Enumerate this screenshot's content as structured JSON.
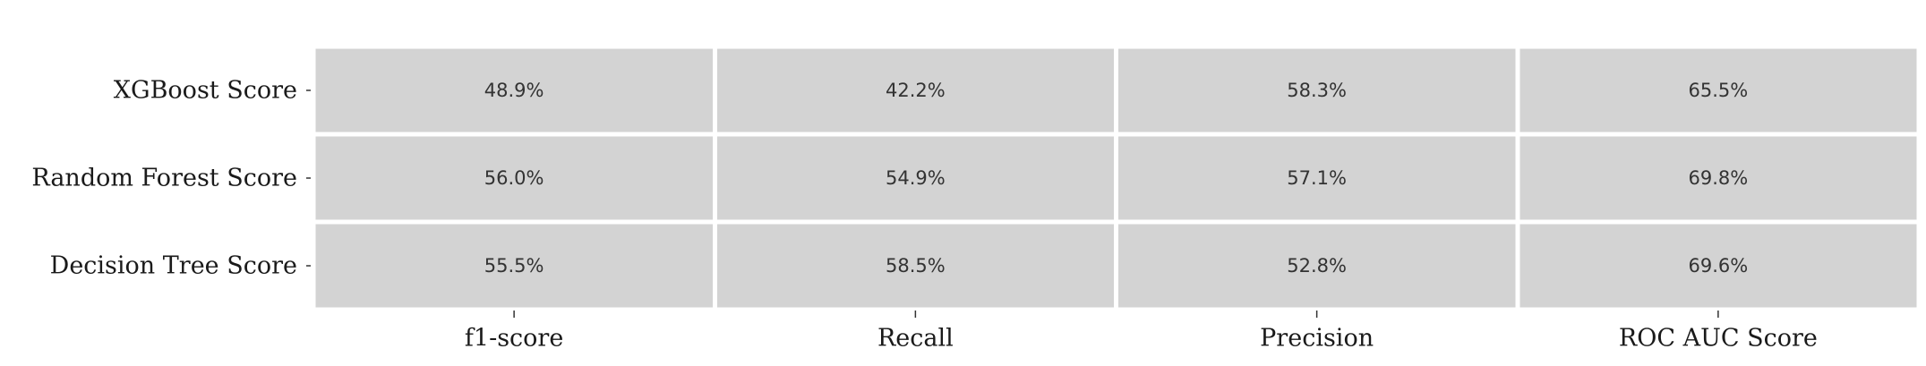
{
  "chart_data": {
    "type": "heatmap",
    "title": "",
    "xlabel": "",
    "ylabel": "",
    "colors": {
      "cell": "#d3d3d3",
      "gap": "#ffffff",
      "text": "#333333"
    },
    "columns": [
      "f1-score",
      "Recall",
      "Precision",
      "ROC AUC Score"
    ],
    "rows": [
      "XGBoost Score",
      "Random Forest Score",
      "Decision Tree Score"
    ],
    "values": [
      [
        48.9,
        42.2,
        58.3,
        65.5
      ],
      [
        56.0,
        54.9,
        57.1,
        69.8
      ],
      [
        55.5,
        58.5,
        52.8,
        69.6
      ]
    ],
    "cell_labels": [
      [
        "48.9%",
        "42.2%",
        "58.3%",
        "65.5%"
      ],
      [
        "56.0%",
        "54.9%",
        "57.1%",
        "69.8%"
      ],
      [
        "55.5%",
        "58.5%",
        "52.8%",
        "69.6%"
      ]
    ]
  }
}
